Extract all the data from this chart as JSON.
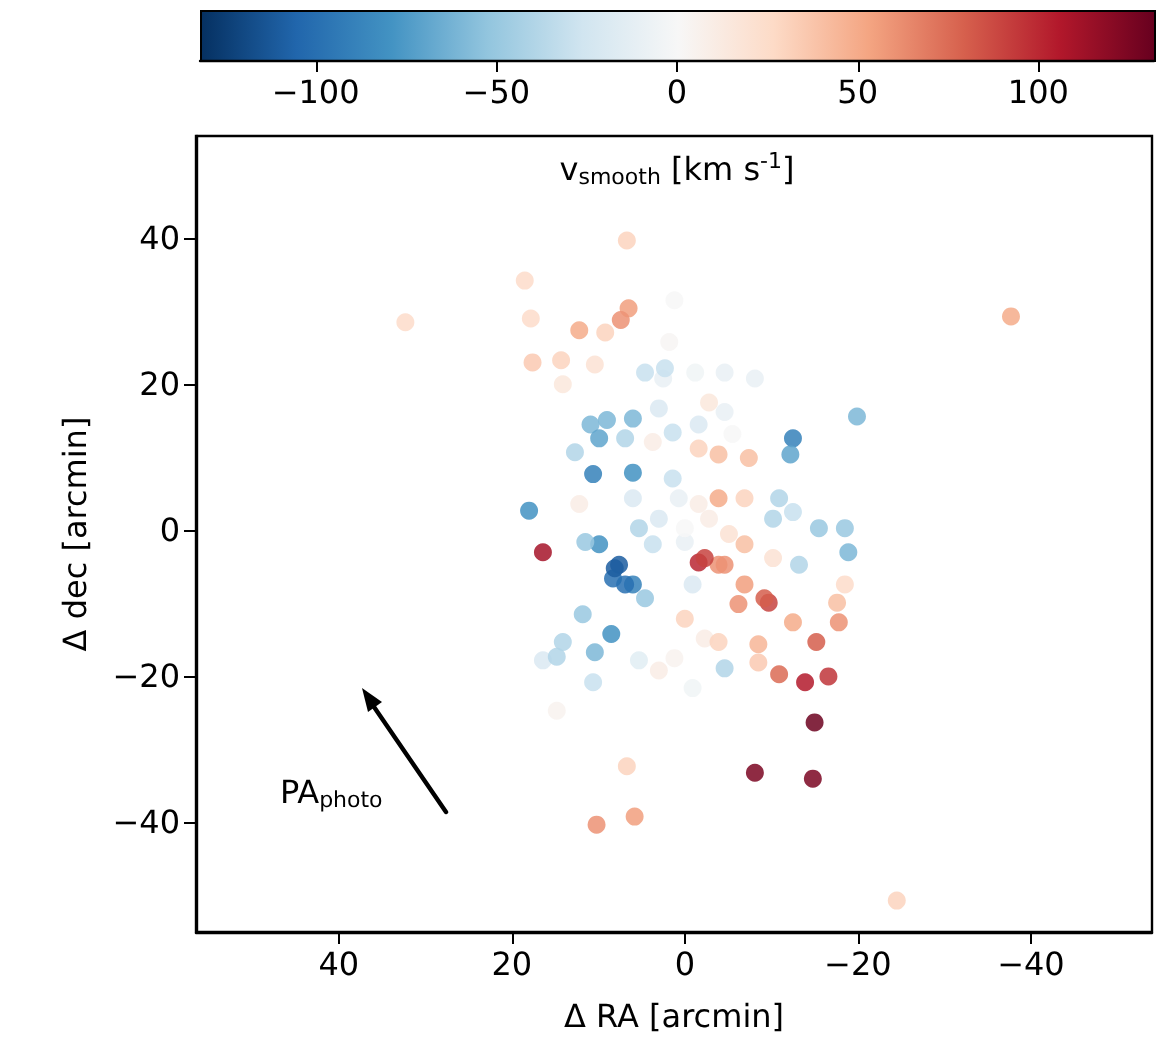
{
  "chart_data": {
    "type": "scatter",
    "xlabel": "Δ RA [arcmin]",
    "ylabel": "Δ dec [arcmin]",
    "clabel": "v$_{smooth}$ [km s$^{-1}$]",
    "annotations": [
      "PA$_{photo}$"
    ],
    "x": [
      32.3,
      -37.7,
      -24.5,
      18.5,
      17.8,
      17.6,
      18.0,
      16.4,
      6.7,
      6.5,
      7.4,
      12.2,
      9.2,
      1.2,
      1.8,
      14.3,
      10.4,
      14.1,
      2.5,
      -1.2,
      -4.6,
      -8.1,
      -19.9,
      -12.5,
      -12.2,
      10.9,
      9.0,
      6.0,
      -2.8,
      -15.5,
      -18.5,
      -18.9,
      -18.5,
      -17.6,
      11.8,
      8.5,
      14.1,
      10.4,
      16.4,
      14.8,
      10.6,
      5.3,
      14.8,
      6.7,
      10.2,
      5.8,
      -8.1,
      -14.8,
      -15.0,
      -13.9,
      -16.6,
      -10.9,
      -15.2,
      -17.8,
      -12.5,
      -9.7,
      -8.5,
      -8.5,
      -4.6,
      -0.9,
      1.2,
      3.0,
      -2.3,
      -3.9,
      0,
      -6.2,
      -1.6,
      -3.9,
      -6.9,
      -0.9,
      4.6,
      7.6,
      8.3,
      6.0,
      9.9,
      3.7,
      0,
      -6.9,
      -10.2,
      -13.2,
      9.9,
      12.7,
      6.9,
      3.0,
      -1.6,
      -4.6,
      -5.5,
      -3.9,
      -7.4,
      -1.6,
      3.7,
      1.4,
      10.6,
      6.0,
      1.4,
      -3.9,
      -6.9,
      -10.9,
      -1.6,
      6.0,
      12.2,
      -10.2,
      -12.5,
      4.6,
      2.3,
      8.1,
      6.9,
      11.5,
      -2.3,
      -4.6,
      -9.2,
      0,
      3.0,
      -2.8,
      5.3,
      -5.1,
      0.7
    ],
    "values": [
      28.5,
      29.3,
      -50.7,
      34.2,
      29.0,
      23.0,
      2.7,
      -3.0,
      39.7,
      30.4,
      28.8,
      27.4,
      27.1,
      31.5,
      25.8,
      23.3,
      22.7,
      20.0,
      20.8,
      21.6,
      21.6,
      20.8,
      15.6,
      12.6,
      10.4,
      14.5,
      15.1,
      15.3,
      17.5,
      0.3,
      0.3,
      -3.0,
      -7.4,
      -9.9,
      -11.5,
      -14.2,
      -15.3,
      -16.7,
      -17.8,
      -17.3,
      -20.8,
      -17.8,
      -24.7,
      -32.3,
      -40.3,
      -39.2,
      -33.2,
      -34.0,
      -26.3,
      -20.8,
      -20.0,
      -19.7,
      -15.3,
      -12.6,
      -12.6,
      -9.9,
      -15.6,
      -18.1,
      -18.9,
      -21.6,
      -17.5,
      -19.2,
      -14.8,
      -15.3,
      -12.1,
      -10.1,
      -4.4,
      -4.7,
      -7.4,
      -7.4,
      -9.3,
      -4.7,
      -6.6,
      -7.4,
      -1.9,
      -1.9,
      -1.6,
      -1.9,
      -3.8,
      -4.7,
      12.6,
      10.7,
      12.6,
      16.7,
      14.5,
      16.2,
      13.2,
      10.4,
      9.9,
      11.2,
      12.1,
      13.4,
      7.7,
      7.9,
      7.1,
      4.4,
      4.4,
      4.4,
      3.6,
      4.4,
      3.6,
      1.6,
      2.5,
      21.6,
      22.2,
      -5.2,
      -7.4,
      -1.6,
      -3.8,
      -4.7,
      -9.3,
      0.3,
      1.6,
      1.6,
      0.3,
      -0.5,
      4.4
    ],
    "cvalues": [
      25,
      50,
      30,
      25,
      25,
      35,
      -80,
      110,
      30,
      55,
      60,
      50,
      30,
      0,
      2,
      30,
      20,
      15,
      -10,
      -5,
      -10,
      -10,
      -60,
      -90,
      -70,
      -60,
      -60,
      -60,
      15,
      -50,
      -50,
      -60,
      25,
      40,
      -50,
      -80,
      -40,
      -60,
      -20,
      -40,
      -30,
      -15,
      5,
      30,
      60,
      55,
      125,
      125,
      130,
      105,
      95,
      75,
      80,
      60,
      50,
      90,
      45,
      35,
      -40,
      -5,
      5,
      10,
      10,
      30,
      30,
      60,
      100,
      60,
      55,
      -20,
      -50,
      -110,
      -100,
      -90,
      -80,
      -30,
      -10,
      40,
      20,
      -40,
      -70,
      -40,
      -40,
      -20,
      -20,
      -10,
      0,
      40,
      40,
      30,
      10,
      -30,
      -90,
      -80,
      -30,
      50,
      30,
      -40,
      10,
      -20,
      10,
      -40,
      -30,
      -30,
      -30,
      -110,
      -100,
      -50,
      90,
      60,
      80,
      0,
      -20,
      10,
      -40,
      20,
      -10
    ],
    "xlim": [
      56.5,
      -54
    ],
    "xticks": [
      40,
      20,
      0,
      {
        "value": -20,
        "label": "−20"
      },
      {
        "value": -40,
        "label": "−40"
      }
    ],
    "ylim": [
      -55,
      54
    ],
    "yticks": [
      {
        "value": -40,
        "label": "−40"
      },
      {
        "value": -20,
        "label": "−20"
      },
      0,
      20,
      40
    ],
    "clim": [
      -132,
      132
    ],
    "cticks": [
      {
        "value": -100,
        "label": "−100"
      },
      {
        "value": -50,
        "label": "−50"
      },
      0,
      50,
      100
    ],
    "marker": "circle"
  }
}
